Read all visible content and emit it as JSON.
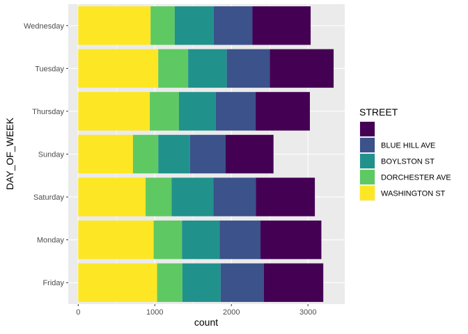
{
  "chart_data": {
    "type": "bar",
    "orientation": "horizontal",
    "stacked": true,
    "title": "",
    "xlabel": "count",
    "ylabel": "DAY_OF_WEEK",
    "xlim": [
      -130,
      3480
    ],
    "xticks": [
      0,
      1000,
      2000,
      3000
    ],
    "xtick_labels": [
      "0",
      "1000",
      "2000",
      "3000"
    ],
    "grid": true,
    "legend_position": "right",
    "legend_title": "STREET",
    "categories": [
      "Friday",
      "Monday",
      "Saturday",
      "Sunday",
      "Thursday",
      "Tuesday",
      "Wednesday"
    ],
    "series": [
      {
        "name": "WASHINGTON ST",
        "color": "#FDE725",
        "values": [
          1030,
          985,
          880,
          715,
          935,
          1045,
          945
        ]
      },
      {
        "name": "DORCHESTER AVE",
        "color": "#5EC962",
        "values": [
          330,
          370,
          340,
          330,
          380,
          390,
          315
        ]
      },
      {
        "name": "BOYLSTON ST",
        "color": "#21918C",
        "values": [
          500,
          490,
          545,
          415,
          480,
          505,
          510
        ]
      },
      {
        "name": "BLUE HILL AVE",
        "color": "#3B528B",
        "values": [
          565,
          535,
          555,
          465,
          520,
          560,
          505
        ]
      },
      {
        "name": "",
        "color": "#440154",
        "values": [
          775,
          795,
          770,
          625,
          710,
          835,
          760
        ]
      }
    ]
  }
}
